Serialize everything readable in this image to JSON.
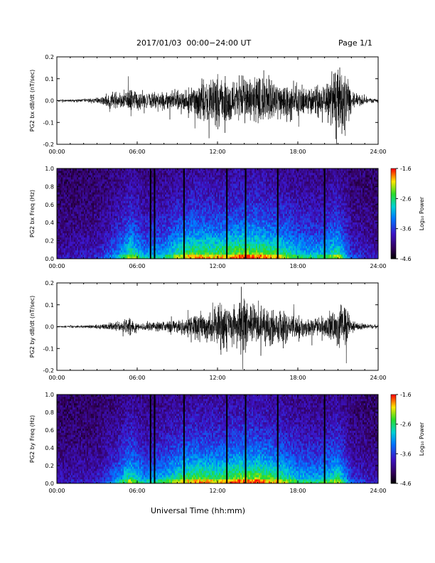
{
  "header": {
    "title": "2017/01/03  00:00−24:00 UT",
    "page": "Page 1/1"
  },
  "xlabel": "Universal Time (hh:mm)",
  "x_ticks": [
    "00:00",
    "06:00",
    "12:00",
    "18:00",
    "24:00"
  ],
  "chart_data": [
    {
      "type": "line",
      "ylabel": "PG2 bx dB/dt (nT/sec)",
      "xlim_hours": [
        0,
        24
      ],
      "ylim": [
        -0.2,
        0.2
      ],
      "y_ticks": [
        "0.2",
        "0.1",
        "0.0",
        "-0.1",
        "-0.2"
      ],
      "envelope_hours": [
        0,
        2,
        3,
        4,
        5,
        5.5,
        6,
        7,
        8,
        9,
        10,
        10.5,
        11,
        11.5,
        12,
        12.5,
        13,
        13.5,
        14,
        15,
        16,
        16.5,
        17,
        18,
        19,
        20,
        20.5,
        21,
        21.5,
        22,
        23,
        24
      ],
      "envelope_amp": [
        0.006,
        0.01,
        0.015,
        0.04,
        0.05,
        0.07,
        0.05,
        0.04,
        0.05,
        0.06,
        0.08,
        0.09,
        0.12,
        0.11,
        0.14,
        0.13,
        0.14,
        0.12,
        0.13,
        0.12,
        0.13,
        0.1,
        0.12,
        0.09,
        0.08,
        0.08,
        0.14,
        0.2,
        0.2,
        0.05,
        0.02,
        0.01
      ]
    },
    {
      "type": "heatmap",
      "ylabel": "PG2 bx Freq (Hz)",
      "xlim_hours": [
        0,
        24
      ],
      "ylim": [
        0.0,
        1.0
      ],
      "y_ticks": [
        "1.0",
        "0.8",
        "0.6",
        "0.4",
        "0.2",
        "0.0"
      ],
      "colorbar": {
        "label": "Log₁₀ Power",
        "min": -4.6,
        "max": -1.6,
        "ticks": [
          "-1.6",
          "-2.6",
          "-3.6",
          "-4.6"
        ]
      },
      "gap_lines_hours": [
        7.0,
        7.3,
        9.5,
        12.7,
        14.1,
        16.5,
        20.0
      ],
      "activity_hours": [
        0,
        3,
        4.5,
        5.5,
        6.5,
        8,
        9.5,
        10.5,
        12,
        13.5,
        15,
        16.5,
        18,
        19.5,
        21,
        22,
        24
      ],
      "activity_level": [
        0.15,
        0.2,
        0.45,
        0.75,
        0.5,
        0.55,
        0.8,
        0.85,
        0.8,
        0.9,
        0.9,
        0.8,
        0.6,
        0.55,
        0.75,
        0.3,
        0.15
      ]
    },
    {
      "type": "line",
      "ylabel": "PG2 by dB/dt (nT/sec)",
      "xlim_hours": [
        0,
        24
      ],
      "ylim": [
        -0.2,
        0.2
      ],
      "y_ticks": [
        "0.2",
        "0.1",
        "0.0",
        "-0.1",
        "-0.2"
      ],
      "envelope_hours": [
        0,
        2,
        3,
        4,
        5,
        5.5,
        6,
        7,
        8,
        9,
        10,
        11,
        12,
        12.5,
        13,
        13.5,
        14,
        15,
        16,
        17,
        18,
        19,
        20,
        21,
        21.5,
        22,
        23,
        24
      ],
      "envelope_amp": [
        0.005,
        0.008,
        0.01,
        0.02,
        0.04,
        0.05,
        0.02,
        0.02,
        0.03,
        0.04,
        0.06,
        0.08,
        0.12,
        0.14,
        0.12,
        0.13,
        0.16,
        0.1,
        0.1,
        0.08,
        0.06,
        0.05,
        0.06,
        0.1,
        0.15,
        0.03,
        0.015,
        0.01
      ]
    },
    {
      "type": "heatmap",
      "ylabel": "PG2 by Freq (Hz)",
      "xlim_hours": [
        0,
        24
      ],
      "ylim": [
        0.0,
        1.0
      ],
      "y_ticks": [
        "1.0",
        "0.8",
        "0.6",
        "0.4",
        "0.2",
        "0.0"
      ],
      "colorbar": {
        "label": "Log₁₀ Power",
        "min": -4.6,
        "max": -1.6,
        "ticks": [
          "-1.6",
          "-2.6",
          "-3.6",
          "-4.6"
        ]
      },
      "gap_lines_hours": [
        7.0,
        7.3,
        9.5,
        12.7,
        14.1,
        16.5,
        20.0
      ],
      "activity_hours": [
        0,
        3,
        4.5,
        5.5,
        6.5,
        8,
        9.5,
        10.5,
        12,
        13.5,
        15,
        16.5,
        18,
        19.5,
        21,
        22,
        24
      ],
      "activity_level": [
        0.15,
        0.2,
        0.45,
        0.75,
        0.5,
        0.6,
        0.8,
        0.85,
        0.8,
        0.9,
        0.9,
        0.8,
        0.6,
        0.55,
        0.75,
        0.3,
        0.15
      ]
    }
  ]
}
